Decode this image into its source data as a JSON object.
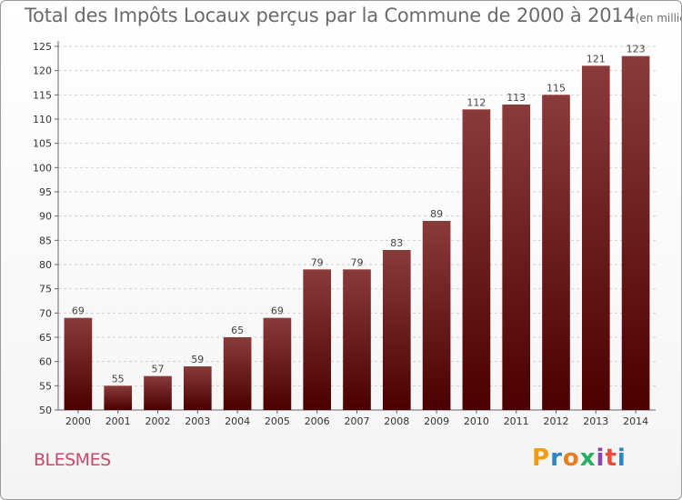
{
  "title": "Total des Impôts Locaux perçus par la Commune de 2000 à 2014",
  "title_unit": "(en milliers d'€)",
  "commune": "BLESMES",
  "logo": {
    "text": "Proxiti",
    "letters": [
      {
        "ch": "P",
        "color": "#f39c12"
      },
      {
        "ch": "r",
        "color": "#2e86c1"
      },
      {
        "ch": "o",
        "color": "#e67e22"
      },
      {
        "ch": "x",
        "color": "#27ae60"
      },
      {
        "ch": "i",
        "color": "#8e44ad"
      },
      {
        "ch": "t",
        "color": "#e74c3c"
      },
      {
        "ch": "i",
        "color": "#2e86c1"
      }
    ]
  },
  "colors": {
    "bar_top": "#8b3a3a",
    "bar_bottom": "#4a0000",
    "grid": "#cfcfcf"
  },
  "chart_data": {
    "type": "bar",
    "categories": [
      "2000",
      "2001",
      "2002",
      "2003",
      "2004",
      "2005",
      "2006",
      "2007",
      "2008",
      "2009",
      "2010",
      "2011",
      "2012",
      "2013",
      "2014"
    ],
    "values": [
      69,
      55,
      57,
      59,
      65,
      69,
      79,
      79,
      83,
      89,
      112,
      113,
      115,
      121,
      123
    ],
    "ylim": [
      50,
      125
    ],
    "yticks": [
      50,
      55,
      60,
      65,
      70,
      75,
      80,
      85,
      90,
      95,
      100,
      105,
      110,
      115,
      120,
      125
    ],
    "grid": true,
    "xlabel": "",
    "ylabel": ""
  }
}
